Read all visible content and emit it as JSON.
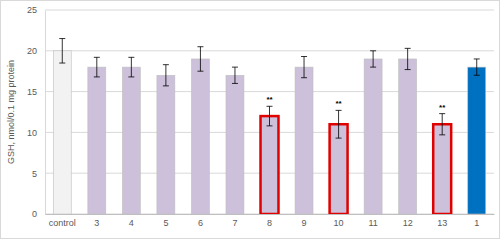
{
  "chart_data": {
    "type": "bar",
    "y_label": "GSH, nmol/0.1 mg protein",
    "categories": [
      "control",
      "3",
      "4",
      "5",
      "6",
      "7",
      "8",
      "9",
      "10",
      "11",
      "12",
      "13",
      "1"
    ],
    "values": [
      20,
      18,
      18,
      17,
      19,
      17,
      12,
      18,
      11,
      19,
      19,
      11,
      18
    ],
    "errors": [
      1.5,
      1.2,
      1.2,
      1.3,
      1.5,
      1.0,
      1.2,
      1.3,
      1.7,
      1.0,
      1.3,
      1.3,
      1.0
    ],
    "annotations": [
      null,
      null,
      null,
      null,
      null,
      null,
      "**",
      null,
      "**",
      null,
      null,
      "**",
      null
    ],
    "colors": [
      "#f2f2f2",
      "#ccc0da",
      "#ccc0da",
      "#ccc0da",
      "#ccc0da",
      "#ccc0da",
      "#ccc0da",
      "#ccc0da",
      "#ccc0da",
      "#ccc0da",
      "#ccc0da",
      "#ccc0da",
      "#0070c0"
    ],
    "ylim": [
      0,
      25
    ],
    "yticks": [
      0,
      5,
      10,
      15,
      20,
      25
    ],
    "grid": true
  }
}
